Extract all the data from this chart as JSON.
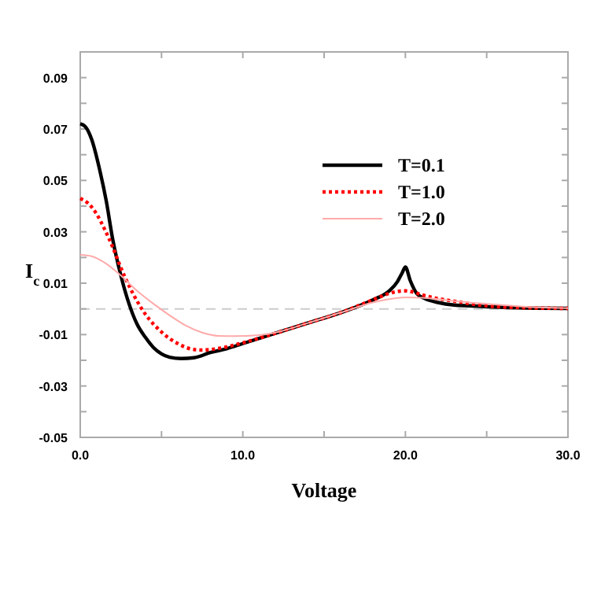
{
  "chart_data": {
    "type": "line",
    "xlabel": "Voltage",
    "ylabel": "I$_{c}$",
    "xlim": [
      0,
      30
    ],
    "ylim": [
      -0.05,
      0.1
    ],
    "xticks": [
      {
        "value": 0,
        "label": "0.0"
      },
      {
        "value": 5,
        "label": null
      },
      {
        "value": 10,
        "label": "10.0"
      },
      {
        "value": 15,
        "label": null
      },
      {
        "value": 20,
        "label": "20.0"
      },
      {
        "value": 25,
        "label": null
      },
      {
        "value": 30,
        "label": "30.0"
      }
    ],
    "yticks": [
      -0.05,
      {
        "value": -0.04,
        "label": null
      },
      -0.03,
      {
        "value": -0.02,
        "label": null
      },
      -0.01,
      {
        "value": 0,
        "label": null
      },
      0.01,
      {
        "value": 0.02,
        "label": null
      },
      0.03,
      {
        "value": 0.04,
        "label": null
      },
      0.05,
      {
        "value": 0.06,
        "label": null
      },
      0.07,
      {
        "value": 0.08,
        "label": null
      },
      0.09
    ],
    "legend": "top right",
    "grid": false,
    "ref_lines": [
      {
        "axis": "y",
        "value": 0,
        "color": "#cccccc",
        "line_style": "dashed"
      }
    ],
    "series": [
      {
        "name": "T=0.1",
        "color": "#000000",
        "line_style": "solid",
        "x": [
          0,
          0.3,
          0.7,
          1.2,
          1.6,
          2,
          2.5,
          3,
          3.5,
          4,
          4.5,
          5,
          5.5,
          6.2,
          7,
          8,
          9,
          10,
          12,
          14,
          16,
          18,
          19,
          19.5,
          19.8,
          20,
          20.3,
          20.7,
          21.2,
          22,
          23,
          24,
          26,
          28,
          30
        ],
        "values": [
          0.072,
          0.071,
          0.066,
          0.054,
          0.042,
          0.027,
          0.013,
          0.002,
          -0.006,
          -0.011,
          -0.015,
          -0.0175,
          -0.0188,
          -0.0193,
          -0.019,
          -0.017,
          -0.0155,
          -0.0135,
          -0.0095,
          -0.0055,
          -0.0015,
          0.0035,
          0.007,
          0.0105,
          0.014,
          0.0163,
          0.011,
          0.006,
          0.004,
          0.0025,
          0.0015,
          0.0012,
          0.0006,
          0.0003,
          0.0002
        ]
      },
      {
        "name": "T=1.0",
        "color": "#ff0000",
        "line_style": "dotted",
        "x": [
          0,
          0.5,
          1,
          1.5,
          2,
          2.5,
          3,
          3.5,
          4,
          5,
          6,
          7,
          7.5,
          8,
          9,
          10,
          12,
          14,
          16,
          18,
          19,
          19.5,
          20,
          20.5,
          21,
          22,
          23,
          24,
          25,
          27,
          30
        ],
        "values": [
          0.043,
          0.041,
          0.037,
          0.031,
          0.024,
          0.016,
          0.009,
          0.003,
          -0.002,
          -0.009,
          -0.0135,
          -0.0158,
          -0.016,
          -0.0158,
          -0.0148,
          -0.0132,
          -0.0095,
          -0.0055,
          -0.0015,
          0.0035,
          0.006,
          0.0068,
          0.007,
          0.0065,
          0.0055,
          0.004,
          0.003,
          0.002,
          0.0012,
          0.0005,
          0.0002
        ]
      },
      {
        "name": "T=2.0",
        "color": "#ffaaaa",
        "line_style": "solid",
        "x": [
          0,
          0.7,
          1.5,
          2.5,
          3.5,
          4.5,
          5.5,
          6.5,
          7.5,
          8.5,
          9.5,
          11,
          12,
          14,
          16,
          18,
          19,
          20,
          21,
          22,
          23,
          25,
          27,
          30
        ],
        "values": [
          0.021,
          0.0205,
          0.018,
          0.013,
          0.007,
          0.002,
          -0.0025,
          -0.0065,
          -0.0092,
          -0.0105,
          -0.0106,
          -0.0102,
          -0.0092,
          -0.0055,
          -0.0015,
          0.0025,
          0.0038,
          0.0045,
          0.0043,
          0.0038,
          0.003,
          0.002,
          0.001,
          0.0003
        ]
      }
    ]
  }
}
